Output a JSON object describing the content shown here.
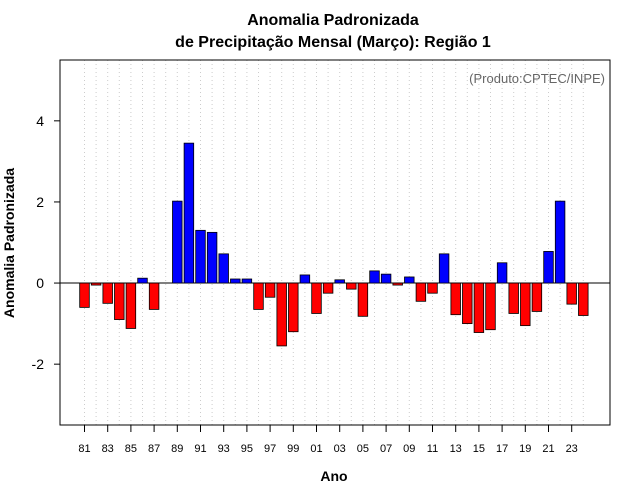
{
  "chart_data": {
    "type": "bar",
    "title_line1": "Anomalia Padronizada",
    "title_line2": "de Precipitação Mensal (Março): Região 1",
    "xlabel": "Ano",
    "ylabel": "Anomalia Padronizada",
    "annotation": "(Produto:CPTEC/INPE)",
    "ylim": [
      -3.5,
      5.5
    ],
    "yticks": [
      -2,
      0,
      2,
      4
    ],
    "ytick_labels": [
      "-2",
      "0",
      "2",
      "4"
    ],
    "categories": [
      "1981",
      "1982",
      "1983",
      "1984",
      "1985",
      "1986",
      "1987",
      "1988",
      "1989",
      "1990",
      "1991",
      "1992",
      "1993",
      "1994",
      "1995",
      "1996",
      "1997",
      "1998",
      "1999",
      "2000",
      "2001",
      "2002",
      "2003",
      "2004",
      "2005",
      "2006",
      "2007",
      "2008",
      "2009",
      "2010",
      "2011",
      "2012",
      "2013",
      "2014",
      "2015",
      "2016",
      "2017",
      "2018",
      "2019",
      "2020",
      "2021",
      "2022",
      "2023",
      "2024"
    ],
    "xtick_labels": [
      "81",
      "83",
      "85",
      "87",
      "89",
      "91",
      "93",
      "95",
      "97",
      "99",
      "01",
      "03",
      "05",
      "07",
      "09",
      "11",
      "13",
      "15",
      "17",
      "19",
      "21",
      "23"
    ],
    "values": [
      -0.6,
      -0.05,
      -0.5,
      -0.9,
      -1.12,
      0.12,
      -0.65,
      0.0,
      2.02,
      3.45,
      1.3,
      1.25,
      0.72,
      0.1,
      0.1,
      -0.65,
      -0.35,
      -1.55,
      -1.2,
      0.2,
      -0.75,
      -0.25,
      0.08,
      -0.15,
      -0.82,
      0.3,
      0.22,
      -0.05,
      0.15,
      -0.45,
      -0.25,
      0.72,
      -0.78,
      -1.0,
      -1.22,
      -1.15,
      0.5,
      -0.75,
      -1.05,
      -0.7,
      0.78,
      2.02,
      -0.52,
      -0.8
    ],
    "positive_color": "#0000ff",
    "negative_color": "#ff0000",
    "grid": "vertical-dotted",
    "zero_line": true
  }
}
